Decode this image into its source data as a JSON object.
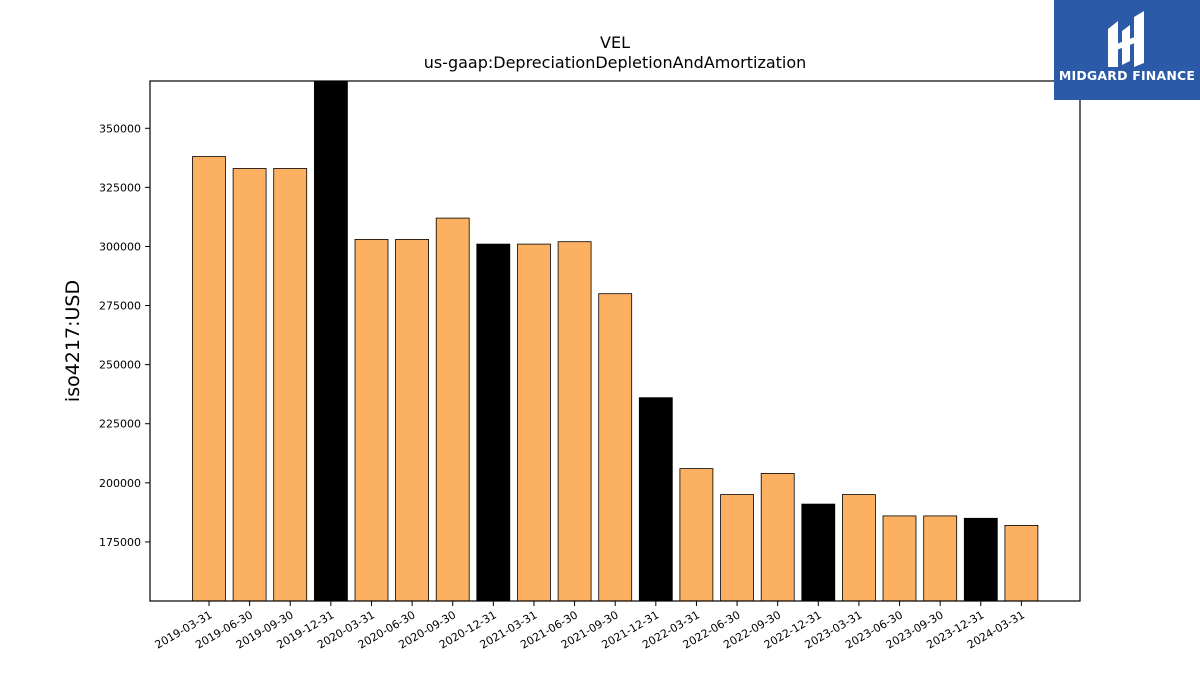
{
  "chart_data": {
    "type": "bar",
    "title": "VEL",
    "subtitle": "us-gaap:DepreciationDepletionAndAmortization",
    "xlabel": "",
    "ylabel": "iso4217:USD",
    "ylim": [
      150000,
      370000
    ],
    "yticks": [
      175000,
      200000,
      225000,
      250000,
      275000,
      300000,
      325000,
      350000
    ],
    "categories": [
      "2019-03-31",
      "2019-06-30",
      "2019-09-30",
      "2019-12-31",
      "2020-03-31",
      "2020-06-30",
      "2020-09-30",
      "2020-12-31",
      "2021-03-31",
      "2021-06-30",
      "2021-09-30",
      "2021-12-31",
      "2022-03-31",
      "2022-06-30",
      "2022-09-30",
      "2022-12-31",
      "2023-03-31",
      "2023-06-30",
      "2023-09-30",
      "2023-12-31",
      "2024-03-31"
    ],
    "values": [
      338000,
      333000,
      333000,
      370000,
      303000,
      303000,
      312000,
      301000,
      301000,
      302000,
      280000,
      236000,
      206000,
      195000,
      204000,
      191000,
      195000,
      186000,
      186000,
      185000,
      182000
    ],
    "bar_colors": [
      "#fbb161",
      "#fbb161",
      "#fbb161",
      "#000000",
      "#fbb161",
      "#fbb161",
      "#fbb161",
      "#000000",
      "#fbb161",
      "#fbb161",
      "#fbb161",
      "#000000",
      "#fbb161",
      "#fbb161",
      "#fbb161",
      "#000000",
      "#fbb161",
      "#fbb161",
      "#fbb161",
      "#000000",
      "#fbb161"
    ],
    "grid": false,
    "legend": "none"
  },
  "logo": {
    "text": "MIDGARD FINANCE",
    "color": "#2b5aa8"
  }
}
